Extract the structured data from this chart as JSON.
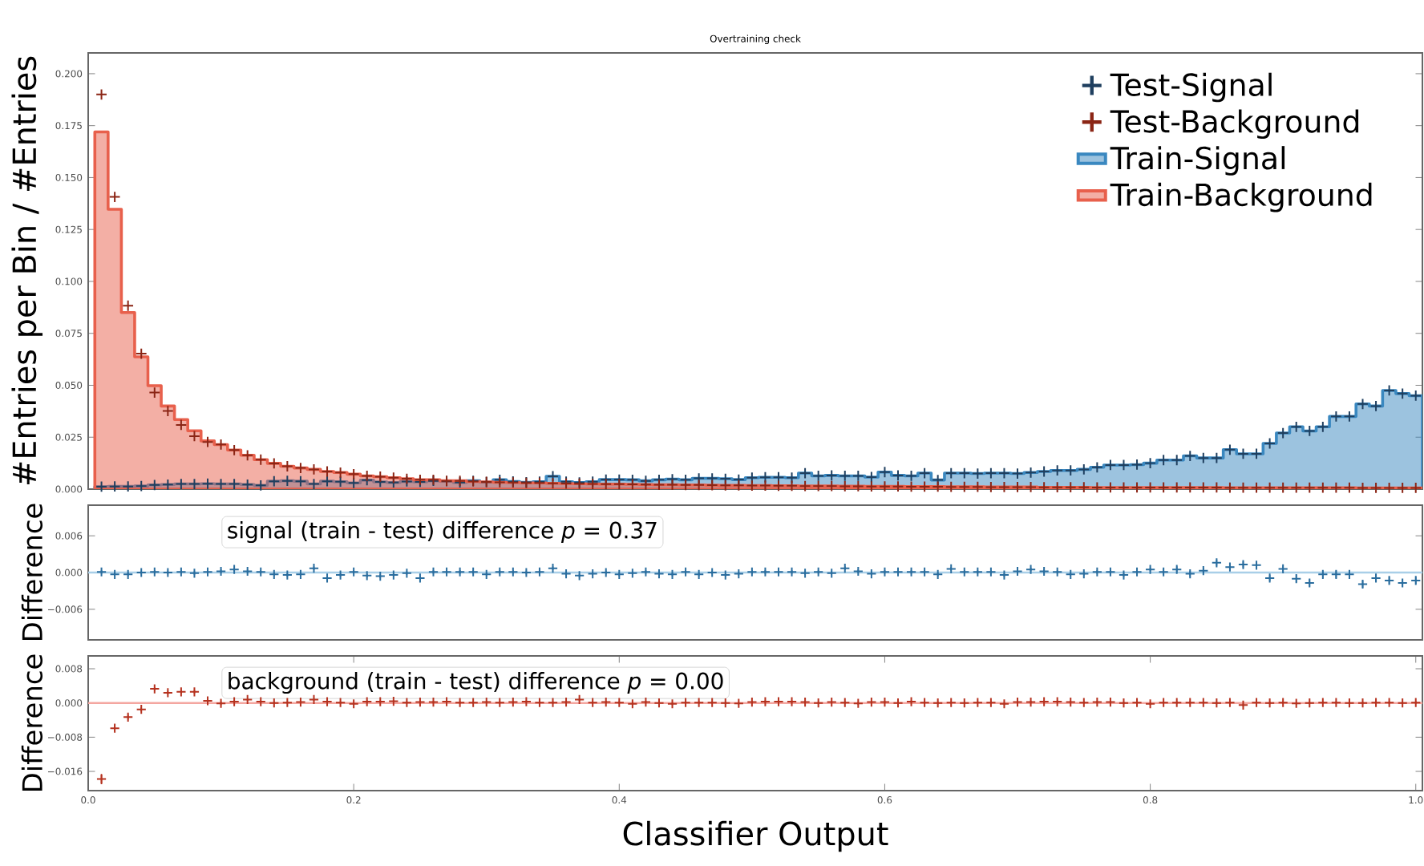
{
  "chart_data": [
    {
      "type": "histogram",
      "title": "Overtraining check",
      "ylabel": "#Entries per Bin / #Entries",
      "legend": "top right",
      "tick_labels": "y",
      "xlim": [
        0,
        1.005
      ],
      "ylim": [
        0,
        0.21
      ],
      "yticks": [
        {
          "value": 0,
          "label": "0.000"
        },
        0.025,
        {
          "value": 0.05,
          "label": "0.050"
        },
        0.075,
        {
          "value": 0.1,
          "label": "0.100"
        },
        0.125,
        {
          "value": 0.15,
          "label": "0.150"
        },
        0.175,
        {
          "value": 0.2,
          "label": "0.200"
        }
      ],
      "bins": [
        0.005,
        0.015,
        0.025,
        0.035,
        0.045,
        0.055,
        0.065,
        0.075,
        0.085,
        0.095,
        0.105,
        0.115,
        0.125,
        0.135,
        0.145,
        0.155,
        0.165,
        0.175,
        0.185,
        0.195,
        0.205,
        0.215,
        0.225,
        0.235,
        0.245,
        0.255,
        0.265,
        0.275,
        0.285,
        0.295,
        0.305,
        0.315,
        0.325,
        0.335,
        0.345,
        0.355,
        0.365,
        0.375,
        0.385,
        0.395,
        0.405,
        0.415,
        0.425,
        0.435,
        0.445,
        0.455,
        0.465,
        0.475,
        0.485,
        0.495,
        0.505,
        0.515,
        0.525,
        0.535,
        0.545,
        0.555,
        0.565,
        0.575,
        0.585,
        0.595,
        0.605,
        0.615,
        0.625,
        0.635,
        0.645,
        0.655,
        0.665,
        0.675,
        0.685,
        0.695,
        0.705,
        0.715,
        0.725,
        0.735,
        0.745,
        0.755,
        0.765,
        0.775,
        0.785,
        0.795,
        0.805,
        0.815,
        0.825,
        0.835,
        0.845,
        0.855,
        0.865,
        0.875,
        0.885,
        0.895,
        0.905,
        0.915,
        0.925,
        0.935,
        0.945,
        0.955,
        0.965,
        0.975,
        0.985,
        0.995,
        1.005
      ],
      "series": [
        {
          "name": "Test-Signal",
          "type": "scatter",
          "marker": "cross",
          "color": "#1f3f5f",
          "x": [
            0.01,
            0.02,
            0.03,
            0.04,
            0.05,
            0.06,
            0.07,
            0.08,
            0.09,
            0.1,
            0.11,
            0.12,
            0.13,
            0.14,
            0.15,
            0.16,
            0.17,
            0.18,
            0.19,
            0.2,
            0.21,
            0.22,
            0.23,
            0.24,
            0.25,
            0.26,
            0.27,
            0.28,
            0.29,
            0.3,
            0.31,
            0.32,
            0.33,
            0.34,
            0.35,
            0.36,
            0.37,
            0.38,
            0.39,
            0.4,
            0.41,
            0.42,
            0.43,
            0.44,
            0.45,
            0.46,
            0.47,
            0.48,
            0.49,
            0.5,
            0.51,
            0.52,
            0.53,
            0.54,
            0.55,
            0.56,
            0.57,
            0.58,
            0.59,
            0.6,
            0.61,
            0.62,
            0.63,
            0.64,
            0.65,
            0.66,
            0.67,
            0.68,
            0.69,
            0.7,
            0.71,
            0.72,
            0.73,
            0.74,
            0.75,
            0.76,
            0.77,
            0.78,
            0.79,
            0.8,
            0.81,
            0.82,
            0.83,
            0.84,
            0.85,
            0.86,
            0.87,
            0.88,
            0.89,
            0.9,
            0.91,
            0.92,
            0.93,
            0.94,
            0.95,
            0.96,
            0.97,
            0.98,
            0.99,
            1.0
          ],
          "values": [
            0.0012,
            0.0013,
            0.0013,
            0.0015,
            0.002,
            0.0022,
            0.0025,
            0.0025,
            0.0026,
            0.0025,
            0.0025,
            0.0022,
            0.0018,
            0.0038,
            0.004,
            0.0038,
            0.0025,
            0.0038,
            0.0036,
            0.003,
            0.0043,
            0.0035,
            0.0032,
            0.0037,
            0.0035,
            0.004,
            0.0038,
            0.0032,
            0.004,
            0.0034,
            0.0045,
            0.0037,
            0.0033,
            0.0036,
            0.0062,
            0.0036,
            0.0032,
            0.0036,
            0.0046,
            0.0046,
            0.0045,
            0.004,
            0.0045,
            0.0048,
            0.0045,
            0.0052,
            0.0052,
            0.005,
            0.0046,
            0.0055,
            0.0057,
            0.0057,
            0.0055,
            0.0077,
            0.0064,
            0.0066,
            0.0064,
            0.0064,
            0.0058,
            0.0082,
            0.0066,
            0.0064,
            0.0077,
            0.0044,
            0.0077,
            0.0077,
            0.0075,
            0.0077,
            0.0077,
            0.0075,
            0.008,
            0.0085,
            0.009,
            0.009,
            0.0095,
            0.0105,
            0.0116,
            0.0116,
            0.0118,
            0.0125,
            0.014,
            0.014,
            0.016,
            0.015,
            0.015,
            0.019,
            0.017,
            0.017,
            0.022,
            0.027,
            0.03,
            0.028,
            0.03,
            0.035,
            0.035,
            0.041,
            0.04,
            0.0475,
            0.046,
            0.045
          ]
        },
        {
          "name": "Test-Background",
          "type": "scatter",
          "marker": "cross",
          "color": "#8b2515",
          "x": [
            0.01,
            0.02,
            0.03,
            0.04,
            0.05,
            0.06,
            0.07,
            0.08,
            0.09,
            0.1,
            0.11,
            0.12,
            0.13,
            0.14,
            0.15,
            0.16,
            0.17,
            0.18,
            0.19,
            0.2,
            0.21,
            0.22,
            0.23,
            0.24,
            0.25,
            0.26,
            0.27,
            0.28,
            0.29,
            0.3,
            0.31,
            0.32,
            0.33,
            0.34,
            0.35,
            0.36,
            0.37,
            0.38,
            0.39,
            0.4,
            0.41,
            0.42,
            0.43,
            0.44,
            0.45,
            0.46,
            0.47,
            0.48,
            0.49,
            0.5,
            0.51,
            0.52,
            0.53,
            0.54,
            0.55,
            0.56,
            0.57,
            0.58,
            0.59,
            0.6,
            0.61,
            0.62,
            0.63,
            0.64,
            0.65,
            0.66,
            0.67,
            0.68,
            0.69,
            0.7,
            0.71,
            0.72,
            0.73,
            0.74,
            0.75,
            0.76,
            0.77,
            0.78,
            0.79,
            0.8,
            0.81,
            0.82,
            0.83,
            0.84,
            0.85,
            0.86,
            0.87,
            0.88,
            0.89,
            0.9,
            0.91,
            0.92,
            0.93,
            0.94,
            0.95,
            0.96,
            0.97,
            0.98,
            0.99,
            1.0
          ],
          "values": [
            0.19,
            0.1407,
            0.0883,
            0.0652,
            0.0465,
            0.0376,
            0.0309,
            0.0255,
            0.0227,
            0.0215,
            0.0188,
            0.0163,
            0.0142,
            0.0124,
            0.011,
            0.0102,
            0.0095,
            0.0085,
            0.008,
            0.0072,
            0.0064,
            0.006,
            0.0055,
            0.005,
            0.0045,
            0.0045,
            0.004,
            0.004,
            0.0037,
            0.0035,
            0.0033,
            0.0032,
            0.003,
            0.003,
            0.0028,
            0.0027,
            0.0026,
            0.0025,
            0.0024,
            0.0024,
            0.0023,
            0.0022,
            0.0021,
            0.0021,
            0.002,
            0.002,
            0.0019,
            0.0018,
            0.0018,
            0.0017,
            0.0017,
            0.0016,
            0.0016,
            0.0015,
            0.0015,
            0.0015,
            0.0014,
            0.0014,
            0.0013,
            0.0013,
            0.0013,
            0.0012,
            0.0012,
            0.0012,
            0.0011,
            0.0011,
            0.0011,
            0.001,
            0.001,
            0.001,
            0.001,
            0.0009,
            0.0009,
            0.0009,
            0.0009,
            0.0008,
            0.0008,
            0.0008,
            0.0008,
            0.0008,
            0.0008,
            0.0008,
            0.0008,
            0.0008,
            0.0008,
            0.0007,
            0.0007,
            0.0007,
            0.0007,
            0.0007,
            0.0007,
            0.0007,
            0.0007,
            0.0007,
            0.0007,
            0.0006,
            0.0006,
            0.0006,
            0.0006,
            0.0006
          ]
        },
        {
          "name": "Train-Signal",
          "color": "#3a88c0",
          "values": [
            0.0012,
            0.0013,
            0.0013,
            0.0015,
            0.002,
            0.0022,
            0.0025,
            0.0025,
            0.0026,
            0.0025,
            0.0025,
            0.0022,
            0.0018,
            0.0038,
            0.004,
            0.0038,
            0.0025,
            0.0038,
            0.0036,
            0.003,
            0.0043,
            0.0035,
            0.0032,
            0.0037,
            0.0035,
            0.004,
            0.0038,
            0.0032,
            0.004,
            0.0034,
            0.0045,
            0.0037,
            0.0033,
            0.0036,
            0.0062,
            0.0036,
            0.0032,
            0.0036,
            0.0046,
            0.0046,
            0.0045,
            0.004,
            0.0045,
            0.0048,
            0.0045,
            0.0052,
            0.0052,
            0.005,
            0.0046,
            0.0055,
            0.0057,
            0.0057,
            0.0055,
            0.0077,
            0.0064,
            0.0066,
            0.0064,
            0.0064,
            0.0058,
            0.0082,
            0.0066,
            0.0064,
            0.0077,
            0.0044,
            0.0077,
            0.0077,
            0.0075,
            0.0077,
            0.0077,
            0.0075,
            0.008,
            0.0085,
            0.009,
            0.009,
            0.0095,
            0.0105,
            0.0116,
            0.0116,
            0.0118,
            0.0125,
            0.014,
            0.014,
            0.016,
            0.015,
            0.015,
            0.019,
            0.017,
            0.017,
            0.022,
            0.027,
            0.03,
            0.028,
            0.03,
            0.035,
            0.035,
            0.041,
            0.04,
            0.0475,
            0.046,
            0.045
          ]
        },
        {
          "name": "Train-Background",
          "color": "#e8604c",
          "values": [
            0.172,
            0.1347,
            0.085,
            0.0637,
            0.0498,
            0.04,
            0.0335,
            0.0281,
            0.0232,
            0.0214,
            0.0188,
            0.0163,
            0.0142,
            0.0124,
            0.011,
            0.0102,
            0.0095,
            0.0085,
            0.008,
            0.0072,
            0.0064,
            0.006,
            0.0055,
            0.005,
            0.0045,
            0.0045,
            0.004,
            0.004,
            0.0037,
            0.0035,
            0.0033,
            0.0032,
            0.003,
            0.003,
            0.0028,
            0.0027,
            0.0026,
            0.0025,
            0.0024,
            0.0024,
            0.0023,
            0.0022,
            0.0021,
            0.0021,
            0.002,
            0.002,
            0.0019,
            0.0018,
            0.0018,
            0.0017,
            0.0017,
            0.0016,
            0.0016,
            0.0015,
            0.0015,
            0.0015,
            0.0014,
            0.0014,
            0.0013,
            0.0013,
            0.0013,
            0.0012,
            0.0012,
            0.0012,
            0.0011,
            0.0011,
            0.0011,
            0.001,
            0.001,
            0.001,
            0.001,
            0.0009,
            0.0009,
            0.0009,
            0.0009,
            0.0008,
            0.0008,
            0.0008,
            0.0008,
            0.0008,
            0.0008,
            0.0008,
            0.0008,
            0.0008,
            0.0008,
            0.0007,
            0.0007,
            0.0007,
            0.0007,
            0.0007,
            0.0007,
            0.0007,
            0.0007,
            0.0007,
            0.0007,
            0.0006,
            0.0006,
            0.0006,
            0.0006,
            0.0006
          ]
        }
      ]
    },
    {
      "type": "scatter",
      "ylabel": "Difference",
      "tick_labels": "y",
      "marker": "cross",
      "xlim": [
        0,
        1.005
      ],
      "ylim": [
        -0.011,
        0.011
      ],
      "yticks": [
        {
          "value": -0.006,
          "label": "−0.006"
        },
        {
          "value": 0,
          "label": "0.000"
        },
        0.006
      ],
      "annotations": [
        "signal (train - test) difference *p* = 0.37"
      ],
      "ref_lines": [
        {
          "axis": "y",
          "value": 0,
          "color": "#a9cfe8"
        }
      ],
      "x": [
        0.01,
        0.02,
        0.03,
        0.04,
        0.05,
        0.06,
        0.07,
        0.08,
        0.09,
        0.1,
        0.11,
        0.12,
        0.13,
        0.14,
        0.15,
        0.16,
        0.17,
        0.18,
        0.19,
        0.2,
        0.21,
        0.22,
        0.23,
        0.24,
        0.25,
        0.26,
        0.27,
        0.28,
        0.29,
        0.3,
        0.31,
        0.32,
        0.33,
        0.34,
        0.35,
        0.36,
        0.37,
        0.38,
        0.39,
        0.4,
        0.41,
        0.42,
        0.43,
        0.44,
        0.45,
        0.46,
        0.47,
        0.48,
        0.49,
        0.5,
        0.51,
        0.52,
        0.53,
        0.54,
        0.55,
        0.56,
        0.57,
        0.58,
        0.59,
        0.6,
        0.61,
        0.62,
        0.63,
        0.64,
        0.65,
        0.66,
        0.67,
        0.68,
        0.69,
        0.7,
        0.71,
        0.72,
        0.73,
        0.74,
        0.75,
        0.76,
        0.77,
        0.78,
        0.79,
        0.8,
        0.81,
        0.82,
        0.83,
        0.84,
        0.85,
        0.86,
        0.87,
        0.88,
        0.89,
        0.9,
        0.91,
        0.92,
        0.93,
        0.94,
        0.95,
        0.96,
        0.97,
        0.98,
        0.99,
        1.0
      ],
      "series": [
        {
          "color": "#2a6d9e",
          "values": [
            0.0001,
            -0.0003,
            -0.0003,
            0,
            0.0001,
            0,
            0.0001,
            -0.0001,
            0.0001,
            0.0002,
            0.0005,
            0.0002,
            0.0001,
            -0.0003,
            -0.0004,
            -0.0003,
            0.0007,
            -0.0009,
            -0.0004,
            0.0001,
            -0.0005,
            -0.0006,
            -0.0004,
            -0.0001,
            -0.0009,
            0.0001,
            0.0001,
            0.0001,
            0.0001,
            -0.0003,
            0.0001,
            0.0001,
            0,
            0.0001,
            0.0007,
            -0.0002,
            -0.0005,
            -0.0002,
            0,
            -0.0003,
            -0.0001,
            0.0001,
            -0.0002,
            -0.0003,
            0.0001,
            -0.0003,
            0,
            -0.0004,
            -0.0002,
            0.0001,
            0.0001,
            0.0001,
            0.0001,
            -0.0001,
            0.0001,
            -0.0001,
            0.0007,
            0.0002,
            -0.0002,
            0.0001,
            0.0001,
            0.0001,
            0.0001,
            -0.0003,
            0.0006,
            0.0001,
            0.0001,
            0.0001,
            -0.0004,
            0.0002,
            0.0005,
            0.0002,
            0.0001,
            -0.0003,
            -0.0002,
            0.0001,
            0.0001,
            -0.0004,
            0.0001,
            0.0005,
            0.0001,
            0.0005,
            -0.0002,
            0.0003,
            0.0016,
            0.0009,
            0.0013,
            0.0012,
            -0.0009,
            0.0006,
            -0.001,
            -0.0017,
            -0.0003,
            -0.0003,
            -0.0003,
            -0.0019,
            -0.0009,
            -0.0013,
            -0.0017,
            -0.0013
          ],
          "errors": [
            0.0003,
            0.0003,
            0.0003,
            0.0003,
            0.0003,
            0.0003,
            0.0003,
            0.0003,
            0.0003,
            0.0003,
            0.0003,
            0.0003,
            0.0003,
            0.0003,
            0.0003,
            0.0003,
            0.0003,
            0.0003,
            0.0003,
            0.0003,
            0.0003,
            0.0003,
            0.0003,
            0.0003,
            0.0003,
            0.0003,
            0.0003,
            0.0003,
            0.0003,
            0.0003,
            0.0003,
            0.0003,
            0.0003,
            0.0003,
            0.0003,
            0.0003,
            0.0003,
            0.0003,
            0.0003,
            0.0003,
            0.0003,
            0.0003,
            0.0003,
            0.0003,
            0.0003,
            0.0003,
            0.0003,
            0.0003,
            0.0003,
            0.0003,
            0.0003,
            0.0003,
            0.0003,
            0.0003,
            0.0003,
            0.0003,
            0.0003,
            0.0003,
            0.0003,
            0.0003,
            0.0003,
            0.0003,
            0.0003,
            0.0003,
            0.0003,
            0.0003,
            0.0003,
            0.0003,
            0.0003,
            0.0003,
            0.0003,
            0.0003,
            0.0003,
            0.0003,
            0.0003,
            0.0003,
            0.0003,
            0.0003,
            0.0003,
            0.0003,
            0.0005,
            0.0005,
            0.0005,
            0.0005,
            0.0005,
            0.0005,
            0.0005,
            0.0005,
            0.0005,
            0.0005,
            0.0006,
            0.0006,
            0.0006,
            0.0006,
            0.0006,
            0.0006,
            0.0006,
            0.0006,
            0.0006,
            0.0006
          ]
        }
      ]
    },
    {
      "type": "scatter",
      "ylabel": "Difference",
      "xlabel": "Classifier Output",
      "marker": "cross",
      "xlim": [
        0,
        1.005
      ],
      "ylim": [
        -0.0205,
        0.011
      ],
      "xticks": [
        {
          "value": 0,
          "label": "0.0"
        },
        0.2,
        0.4,
        0.6,
        0.8,
        {
          "value": 1,
          "label": "1.0"
        }
      ],
      "yticks": [
        {
          "value": -0.016,
          "label": "−0.016"
        },
        {
          "value": -0.008,
          "label": "−0.008"
        },
        {
          "value": 0,
          "label": "0.000"
        },
        0.008
      ],
      "annotations": [
        "background (train - test) difference *p* = 0.00"
      ],
      "ref_lines": [
        {
          "axis": "y",
          "value": 0,
          "color": "#f4a6a0"
        }
      ],
      "x": [
        0.01,
        0.02,
        0.03,
        0.04,
        0.05,
        0.06,
        0.07,
        0.08,
        0.09,
        0.1,
        0.11,
        0.12,
        0.13,
        0.14,
        0.15,
        0.16,
        0.17,
        0.18,
        0.19,
        0.2,
        0.21,
        0.22,
        0.23,
        0.24,
        0.25,
        0.26,
        0.27,
        0.28,
        0.29,
        0.3,
        0.31,
        0.32,
        0.33,
        0.34,
        0.35,
        0.36,
        0.37,
        0.38,
        0.39,
        0.4,
        0.41,
        0.42,
        0.43,
        0.44,
        0.45,
        0.46,
        0.47,
        0.48,
        0.49,
        0.5,
        0.51,
        0.52,
        0.53,
        0.54,
        0.55,
        0.56,
        0.57,
        0.58,
        0.59,
        0.6,
        0.61,
        0.62,
        0.63,
        0.64,
        0.65,
        0.66,
        0.67,
        0.68,
        0.69,
        0.7,
        0.71,
        0.72,
        0.73,
        0.74,
        0.75,
        0.76,
        0.77,
        0.78,
        0.79,
        0.8,
        0.81,
        0.82,
        0.83,
        0.84,
        0.85,
        0.86,
        0.87,
        0.88,
        0.89,
        0.9,
        0.91,
        0.92,
        0.93,
        0.94,
        0.95,
        0.96,
        0.97,
        0.98,
        0.99,
        1.0
      ],
      "series": [
        {
          "color": "#b5321f",
          "values": [
            -0.0178,
            -0.0059,
            -0.0033,
            -0.0015,
            0.0033,
            0.0024,
            0.0026,
            0.0026,
            0.0005,
            -0.0001,
            0.0003,
            0.0008,
            0.0003,
            0,
            0.0001,
            0.0002,
            0.0008,
            0.0003,
            0.0001,
            -0.0002,
            0.0003,
            0.0003,
            0.0004,
            0.0001,
            0.0002,
            0.0002,
            0.0003,
            0.0001,
            0.0001,
            0.0002,
            0.0001,
            0.0002,
            0.0003,
            0.0001,
            0.0001,
            0.0002,
            0.0008,
            0.0001,
            0.0002,
            0.0001,
            -0.0002,
            0.0002,
            0,
            -0.0002,
            0.0001,
            0.0001,
            0.0001,
            0,
            -0.0001,
            0.0002,
            0.0003,
            0.0003,
            0.0003,
            0.0002,
            0,
            0.0002,
            0.0001,
            -0.0001,
            0.0002,
            0.0002,
            0,
            0.0003,
            0.0001,
            0,
            0.0001,
            0,
            0.0001,
            0.0001,
            -0.0002,
            0.0002,
            0.0002,
            0.0003,
            0.0003,
            0.0002,
            0.0001,
            0.0002,
            0.0002,
            0,
            0.0001,
            -0.0002,
            0.0001,
            0.0001,
            0.0001,
            0.0001,
            0,
            0.0001,
            -0.0005,
            0.0001,
            0,
            0.0001,
            -0.0001,
            0,
            0.0001,
            0.0001,
            0,
            0,
            0.0001,
            0.0001,
            0,
            0.0001
          ],
          "errors": [
            0.0012,
            0.0008,
            0.0006,
            0.0005,
            0.0004,
            0.0004,
            0.0004,
            0.0004,
            0.0004,
            0.0004,
            0.0003,
            0.0003,
            0.0003,
            0.0003,
            0.0003,
            0.0003,
            0.0003,
            0.0003,
            0.0003,
            0.0003,
            0.0003,
            0.0003,
            0.0003,
            0.0003,
            0.0003,
            0.0003,
            0.0003,
            0.0003,
            0.0003,
            0.0003,
            0.0003,
            0.0003,
            0.0003,
            0.0003,
            0.0003,
            0.0003,
            0.0003,
            0.0003,
            0.0003,
            0.0003,
            0.0003,
            0.0003,
            0.0003,
            0.0003,
            0.0003,
            0.0003,
            0.0003,
            0.0003,
            0.0003,
            0.0003,
            0.0003,
            0.0003,
            0.0003,
            0.0003,
            0.0003,
            0.0003,
            0.0003,
            0.0003,
            0.0003,
            0.0003,
            0.0003,
            0.0003,
            0.0003,
            0.0003,
            0.0003,
            0.0003,
            0.0003,
            0.0003,
            0.0003,
            0.0003,
            0.0003,
            0.0003,
            0.0003,
            0.0003,
            0.0003,
            0.0003,
            0.0003,
            0.0003,
            0.0003,
            0.0003,
            0.0003,
            0.0003,
            0.0003,
            0.0003,
            0.0003,
            0.0003,
            0.0003,
            0.0003,
            0.0003,
            0.0003,
            0.0003,
            0.0003,
            0.0003,
            0.0003,
            0.0003,
            0.0003,
            0.0003,
            0.0003,
            0.0003,
            0.0003
          ]
        }
      ]
    }
  ]
}
